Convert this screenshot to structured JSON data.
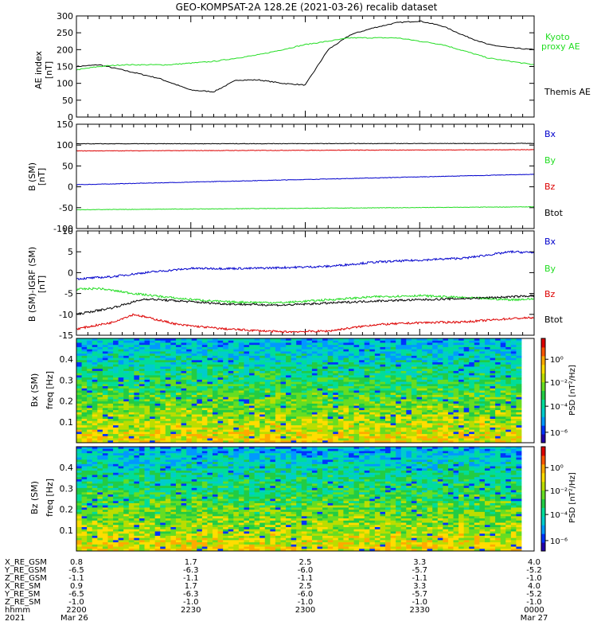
{
  "title": "GEO-KOMPSAT-2A 128.2E (2021-03-26) recalib dataset",
  "colors": {
    "black": "#000000",
    "green": "#22dd22",
    "red": "#dd0000",
    "blue": "#0000cc"
  },
  "chart_data": [
    {
      "type": "line",
      "ylabel_line1": "AE index",
      "ylabel_line2": "[nT]",
      "ylim": [
        0,
        300
      ],
      "yticks": [
        "0",
        "50",
        "100",
        "150",
        "200",
        "250",
        "300"
      ],
      "series": [
        {
          "name": "Themis AE",
          "color": "#000000",
          "x": [
            0.0,
            0.05,
            0.1,
            0.18,
            0.25,
            0.3,
            0.35,
            0.4,
            0.45,
            0.5,
            0.55,
            0.6,
            0.65,
            0.7,
            0.75,
            0.8,
            0.85,
            0.9,
            0.95,
            1.0
          ],
          "values": [
            150,
            155,
            140,
            115,
            80,
            75,
            110,
            110,
            100,
            95,
            200,
            245,
            265,
            280,
            285,
            270,
            240,
            215,
            205,
            200
          ]
        },
        {
          "name": "Kyoto proxy AE",
          "color": "#22dd22",
          "x": [
            0.0,
            0.05,
            0.1,
            0.2,
            0.3,
            0.4,
            0.5,
            0.6,
            0.7,
            0.8,
            0.9,
            1.0
          ],
          "values": [
            140,
            150,
            155,
            155,
            165,
            185,
            215,
            235,
            235,
            215,
            175,
            155
          ]
        }
      ]
    },
    {
      "type": "line",
      "ylabel_line1": "B (SM)",
      "ylabel_line2": "[nT]",
      "ylim": [
        -100,
        150
      ],
      "yticks": [
        "-100",
        "-50",
        "0",
        "50",
        "100",
        "150"
      ],
      "series": [
        {
          "name": "Bx",
          "color": "#0000cc",
          "x": [
            0.0,
            4.0
          ],
          "values": [
            5,
            30
          ]
        },
        {
          "name": "By",
          "color": "#22dd22",
          "x": [
            0.0,
            4.0
          ],
          "values": [
            -55,
            -48
          ]
        },
        {
          "name": "Bz",
          "color": "#dd0000",
          "x": [
            0.0,
            4.0
          ],
          "values": [
            86,
            89
          ]
        },
        {
          "name": "Btot",
          "color": "#000000",
          "x": [
            0.0,
            4.0
          ],
          "values": [
            103,
            104
          ]
        }
      ]
    },
    {
      "type": "line",
      "ylabel_line1": "B (SM)-IGRF (SM)",
      "ylabel_line2": "[nT]",
      "ylim": [
        -15,
        10
      ],
      "yticks": [
        "-15",
        "-10",
        "-5",
        "0",
        "5",
        "10"
      ],
      "series": [
        {
          "name": "Bx",
          "color": "#0000cc",
          "x": [
            0.0,
            0.3,
            0.6,
            1.0,
            1.5,
            1.8,
            2.2,
            2.6,
            3.0,
            3.4,
            3.8,
            4.0
          ],
          "values": [
            -1.5,
            -1.0,
            0.0,
            1.0,
            1.0,
            1.2,
            1.5,
            2.5,
            3.0,
            3.5,
            5.0,
            4.8
          ]
        },
        {
          "name": "By",
          "color": "#22dd22",
          "x": [
            0.0,
            0.2,
            0.5,
            0.9,
            1.3,
            1.8,
            2.2,
            2.6,
            3.0,
            3.4,
            3.8,
            4.0
          ],
          "values": [
            -4.0,
            -3.8,
            -5.0,
            -6.2,
            -7.0,
            -7.2,
            -6.5,
            -5.8,
            -5.5,
            -6.0,
            -6.5,
            -6.3
          ]
        },
        {
          "name": "Bz",
          "color": "#dd0000",
          "x": [
            0.0,
            0.3,
            0.5,
            0.9,
            1.3,
            1.8,
            2.2,
            2.6,
            3.0,
            3.4,
            3.8,
            4.0
          ],
          "values": [
            -13.5,
            -12.0,
            -10.0,
            -12.5,
            -13.5,
            -14.2,
            -14.0,
            -12.5,
            -12.0,
            -11.8,
            -11.0,
            -10.8
          ]
        },
        {
          "name": "Btot",
          "color": "#000000",
          "x": [
            0.0,
            0.3,
            0.6,
            0.9,
            1.3,
            1.8,
            2.2,
            2.6,
            3.0,
            3.4,
            3.8,
            4.0
          ],
          "values": [
            -10.0,
            -8.5,
            -6.3,
            -6.8,
            -7.5,
            -7.8,
            -7.3,
            -6.8,
            -6.5,
            -6.2,
            -5.8,
            -5.5
          ]
        }
      ]
    },
    {
      "type": "heatmap",
      "ylabel_line1": "Bx (SM)",
      "ylabel_line2": "freq [Hz]",
      "yticks": [
        "0.1",
        "0.2",
        "0.3",
        "0.4"
      ],
      "colorbar_label": "PSD [nT²/Hz]",
      "colorbar_ticks": [
        "10⁰",
        "10⁻²",
        "10⁻⁴",
        "10⁻⁶"
      ]
    },
    {
      "type": "heatmap",
      "ylabel_line1": "Bz (SM)",
      "ylabel_line2": "freq [Hz]",
      "yticks": [
        "0.1",
        "0.2",
        "0.3",
        "0.4"
      ],
      "colorbar_label": "PSD [nT²/Hz]",
      "colorbar_ticks": [
        "10⁰",
        "10⁻²",
        "10⁻⁴",
        "10⁻⁶"
      ]
    }
  ],
  "legend": {
    "panel1": [
      "Kyoto",
      "proxy AE",
      "Themis AE"
    ],
    "panel2": [
      "Bx",
      "By",
      "Bz",
      "Btot"
    ],
    "panel3": [
      "Bx",
      "By",
      "Bz",
      "Btot"
    ]
  },
  "x_axis_table": {
    "rows": [
      {
        "label": "X_RE_GSM",
        "values": [
          "0.8",
          "1.7",
          "2.5",
          "3.3",
          "4.0"
        ]
      },
      {
        "label": "Y_RE_GSM",
        "values": [
          "-6.5",
          "-6.3",
          "-6.0",
          "-5.7",
          "-5.2"
        ]
      },
      {
        "label": "Z_RE_GSM",
        "values": [
          "-1.1",
          "-1.1",
          "-1.1",
          "-1.1",
          "-1.0"
        ]
      },
      {
        "label": "X_RE_SM",
        "values": [
          "0.9",
          "1.7",
          "2.5",
          "3.3",
          "4.0"
        ]
      },
      {
        "label": "Y_RE_SM",
        "values": [
          "-6.5",
          "-6.3",
          "-6.0",
          "-5.7",
          "-5.2"
        ]
      },
      {
        "label": "Z_RE_SM",
        "values": [
          "-1.0",
          "-1.0",
          "-1.0",
          "-1.0",
          "-1.0"
        ]
      },
      {
        "label": "hhmm",
        "values": [
          "2200",
          "2230",
          "2300",
          "2330",
          "0000"
        ]
      },
      {
        "label": "2021",
        "values": [
          "Mar 26",
          "",
          "",
          "",
          "Mar 27"
        ]
      }
    ]
  }
}
